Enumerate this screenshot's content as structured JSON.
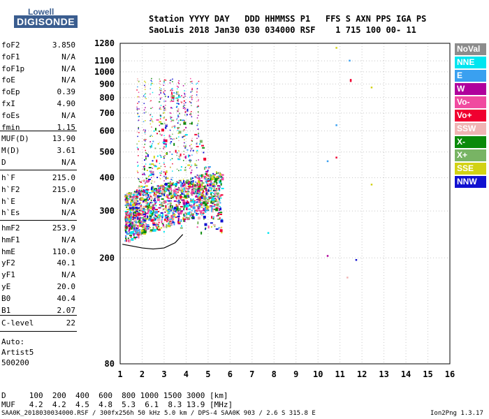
{
  "logo": {
    "top": "Lowell",
    "main": "DIGISONDE"
  },
  "header": {
    "line1": "Station YYYY DAY   DDD HHMMSS P1   FFS S AXN PPS IGA PS",
    "line2": "SaoLuis 2018 Jan30 030 034000 RSF    1 715 100 00- 11"
  },
  "params_group1": [
    {
      "name": "foF2",
      "value": "3.850"
    },
    {
      "name": "foF1",
      "value": "N/A"
    },
    {
      "name": "foF1p",
      "value": "N/A"
    },
    {
      "name": "foE",
      "value": "N/A"
    },
    {
      "name": "foEp",
      "value": "0.39"
    },
    {
      "name": "fxI",
      "value": "4.90"
    },
    {
      "name": "foEs",
      "value": "N/A"
    },
    {
      "name": "fmin",
      "value": "1.15"
    }
  ],
  "params_group2": [
    {
      "name": "MUF(D)",
      "value": "13.90"
    },
    {
      "name": "M(D)",
      "value": "3.61"
    },
    {
      "name": "D",
      "value": "N/A"
    }
  ],
  "params_group3": [
    {
      "name": "h`F",
      "value": "215.0"
    },
    {
      "name": "h`F2",
      "value": "215.0"
    },
    {
      "name": "h`E",
      "value": "N/A"
    },
    {
      "name": "h`Es",
      "value": "N/A"
    }
  ],
  "params_group4": [
    {
      "name": "hmF2",
      "value": "253.9"
    },
    {
      "name": "hmF1",
      "value": "N/A"
    },
    {
      "name": "hmE",
      "value": "110.0"
    },
    {
      "name": "yF2",
      "value": "40.1"
    },
    {
      "name": "yF1",
      "value": "N/A"
    },
    {
      "name": "yE",
      "value": "20.0"
    },
    {
      "name": "B0",
      "value": "40.4"
    },
    {
      "name": "B1",
      "value": "2.07"
    }
  ],
  "params_group5": [
    {
      "name": "C-level",
      "value": "22"
    }
  ],
  "autoscale": {
    "line1": "Auto:",
    "line2": "Artist5",
    "line3": "500200"
  },
  "legend": [
    {
      "label": "NoVal",
      "color": "#8c8c8c"
    },
    {
      "label": "NNE",
      "color": "#00e5f0"
    },
    {
      "label": "E",
      "color": "#3aa0f0"
    },
    {
      "label": "W",
      "color": "#b0009c"
    },
    {
      "label": "Vo-",
      "color": "#f04aa0"
    },
    {
      "label": "Vo+",
      "color": "#f00030"
    },
    {
      "label": "SSW",
      "color": "#f0b4b4"
    },
    {
      "label": "X-",
      "color": "#0a8a0a"
    },
    {
      "label": "X+",
      "color": "#78b464"
    },
    {
      "label": "SSE",
      "color": "#d2d214"
    },
    {
      "label": "NNW",
      "color": "#1010d0"
    }
  ],
  "muf_table": {
    "d_line": "D     100  200  400  600  800 1000 1500 3000 [km]",
    "muf_line": "MUF   4.2  4.2  4.5  4.8  5.3  6.1  8.3 13.9 [MHz]"
  },
  "footer": {
    "left": "SAA0K_2018030034000.RSF / 300fx256h 50 kHz 5.0 km / DPS-4 SAA0K 903 / 2.6 S 315.8 E",
    "right": "Ion2Png 1.3.17"
  },
  "chart_data": {
    "type": "scatter",
    "title": "",
    "xlabel": "",
    "ylabel": "",
    "xlim": [
      1,
      16
    ],
    "ylim": [
      80,
      1280
    ],
    "x_ticks": [
      1,
      2,
      3,
      4,
      5,
      6,
      7,
      8,
      9,
      10,
      11,
      12,
      13,
      14,
      15,
      16
    ],
    "y_ticks": [
      80,
      200,
      300,
      400,
      500,
      600,
      700,
      800,
      900,
      1000,
      1100,
      1280
    ],
    "y_scale": "log",
    "grid": true,
    "trace": [
      [
        1.1,
        225
      ],
      [
        1.5,
        222
      ],
      [
        2.0,
        218
      ],
      [
        2.5,
        216
      ],
      [
        3.0,
        218
      ],
      [
        3.5,
        228
      ],
      [
        3.85,
        245
      ]
    ],
    "isolated_points": [
      {
        "x": 10.8,
        "y": 1240,
        "color": "#d2d214"
      },
      {
        "x": 11.4,
        "y": 1110,
        "color": "#3aa0f0"
      },
      {
        "x": 11.45,
        "y": 940,
        "color": "#f00030"
      },
      {
        "x": 11.45,
        "y": 930,
        "color": "#f00030"
      },
      {
        "x": 12.4,
        "y": 880,
        "color": "#d2d214"
      },
      {
        "x": 10.8,
        "y": 635,
        "color": "#3aa0f0"
      },
      {
        "x": 10.8,
        "y": 480,
        "color": "#f00030"
      },
      {
        "x": 10.4,
        "y": 465,
        "color": "#3aa0f0"
      },
      {
        "x": 12.4,
        "y": 380,
        "color": "#d2d214"
      },
      {
        "x": 7.7,
        "y": 250,
        "color": "#00e5f0"
      },
      {
        "x": 10.4,
        "y": 205,
        "color": "#b0009c"
      },
      {
        "x": 11.7,
        "y": 198,
        "color": "#1010d0"
      },
      {
        "x": 11.3,
        "y": 170,
        "color": "#f0b4b4"
      }
    ]
  }
}
